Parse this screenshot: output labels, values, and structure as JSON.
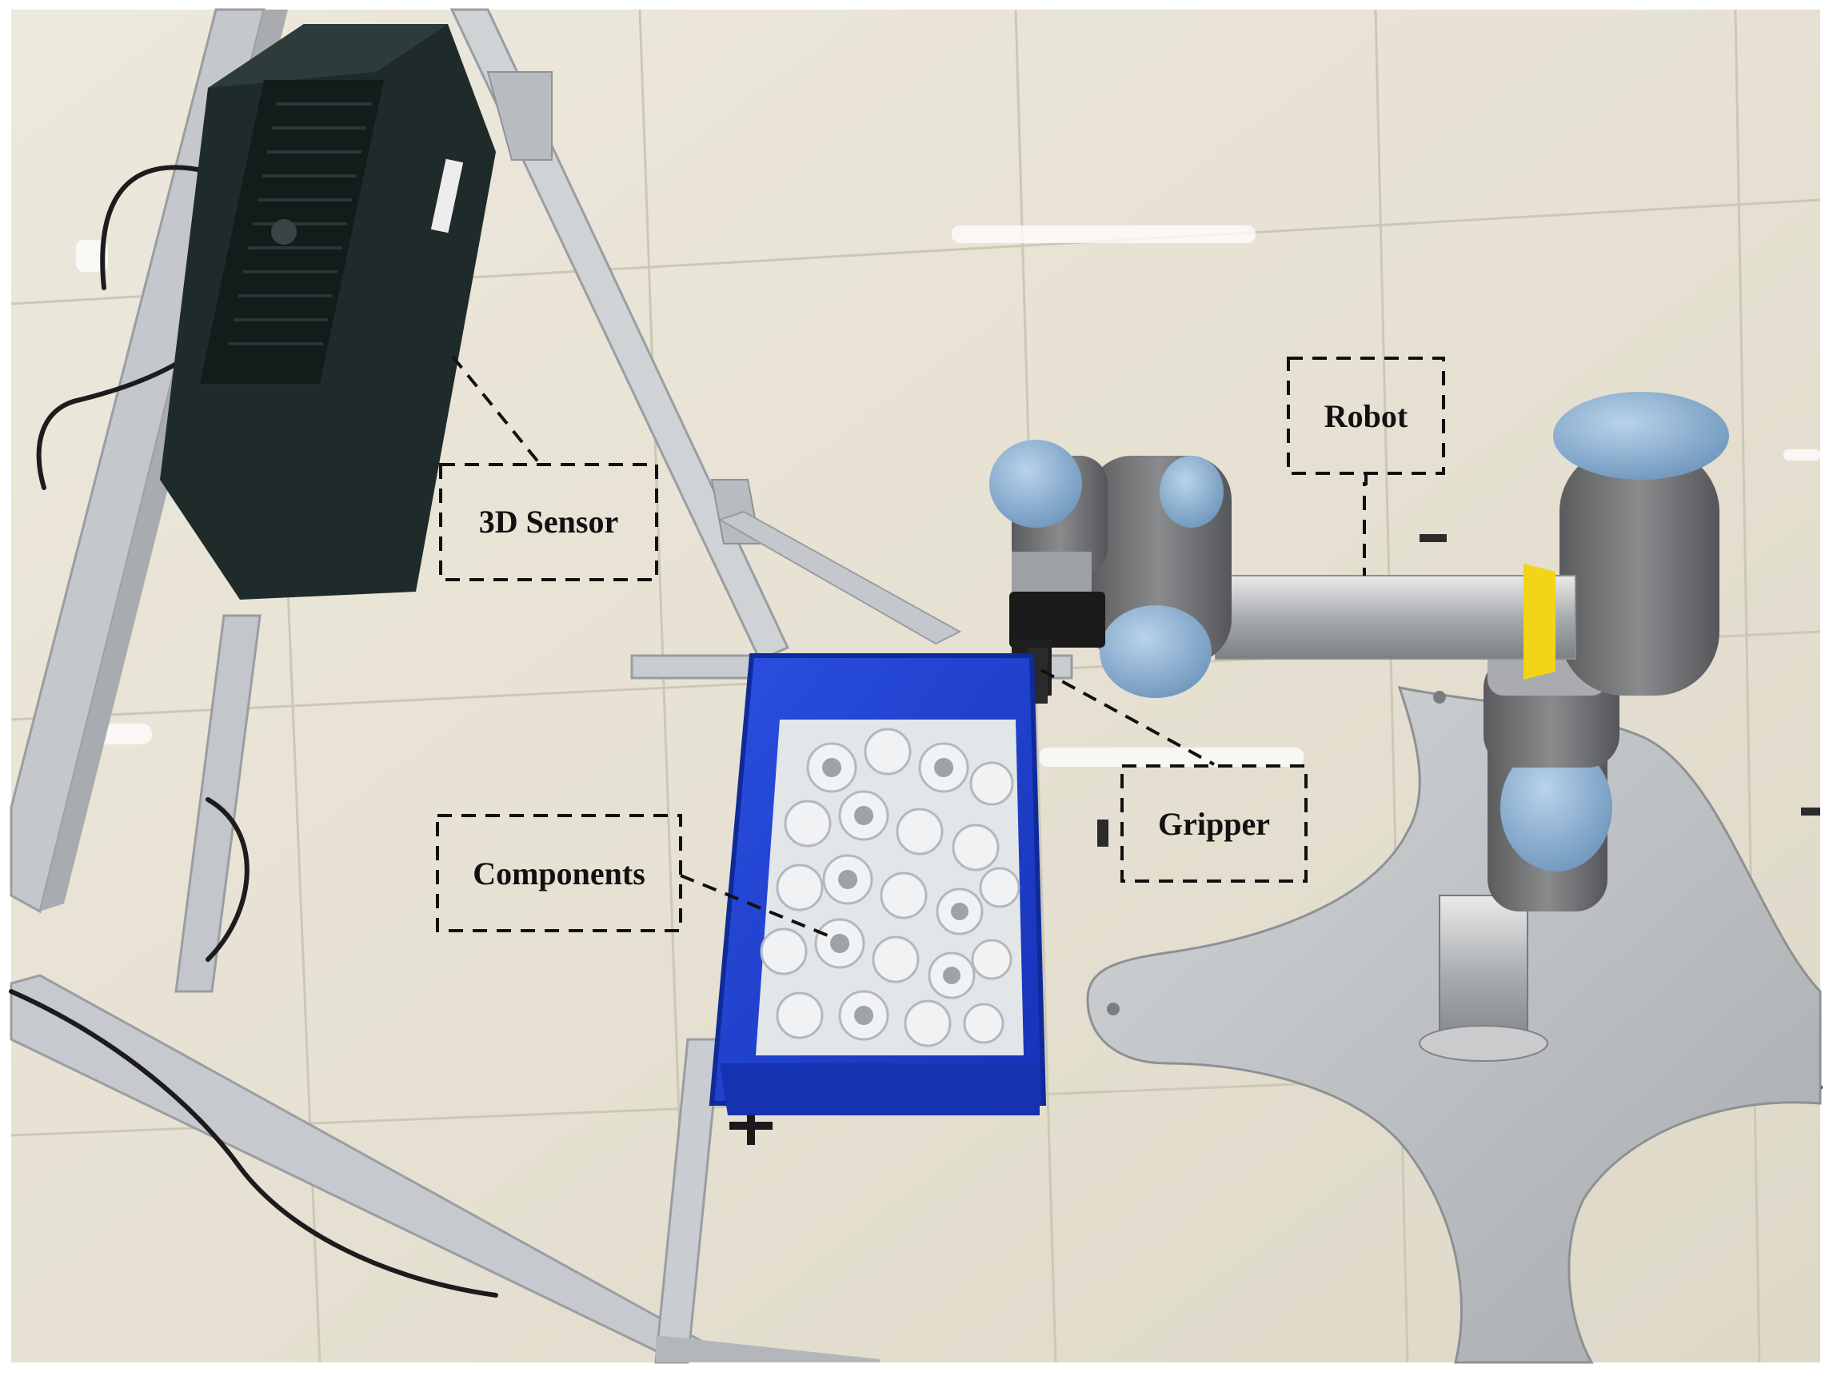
{
  "labels": {
    "sensor": "3D Sensor",
    "robot": "Robot",
    "gripper": "Gripper",
    "components": "Components"
  },
  "colors": {
    "floor": "#e9e4d6",
    "floor_grout": "#cfc9b9",
    "aluminum_frame": "#c9ccd0",
    "sensor_body": "#1d2a2a",
    "bin_blue": "#1c3fd0",
    "pipe_white": "#e8eaec",
    "robot_joint_blue": "#8fb3d3",
    "robot_gray": "#6c6d6f",
    "robot_silver": "#b7b9bc",
    "base_plate": "#bfc2c4",
    "yellow_ring": "#f2d418"
  }
}
